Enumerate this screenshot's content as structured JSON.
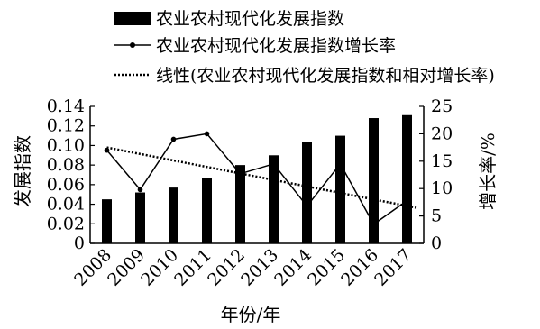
{
  "chart_data": {
    "type": "bar",
    "categories": [
      "2008",
      "2009",
      "2010",
      "2011",
      "2012",
      "2013",
      "2014",
      "2015",
      "2016",
      "2017"
    ],
    "series": [
      {
        "name": "农业农村现代化发展指数",
        "kind": "bar",
        "axis": "left",
        "values": [
          0.045,
          0.052,
          0.057,
          0.067,
          0.08,
          0.09,
          0.104,
          0.11,
          0.128,
          0.131
        ]
      },
      {
        "name": "农业农村现代化发展指数增长率",
        "kind": "line",
        "axis": "right",
        "values": [
          17.0,
          9.8,
          19.0,
          20.0,
          12.7,
          14.5,
          6.8,
          14.5,
          3.5,
          7.8
        ]
      },
      {
        "name": "线性(农业农村现代化发展指数和相对增长率)",
        "kind": "trendline",
        "axis": "right",
        "start": 17.5,
        "end": 6.5
      }
    ],
    "xlabel": "年份/年",
    "ylabel": "发展指数",
    "y2label": "增长率/%",
    "ylim": [
      0,
      0.14
    ],
    "y2lim": [
      0,
      25
    ],
    "yticks": [
      "0",
      "0.02",
      "0.04",
      "0.06",
      "0.08",
      "0.10",
      "0.12",
      "0.14"
    ],
    "y2ticks": [
      "0",
      "5",
      "10",
      "15",
      "20",
      "25"
    ],
    "grid": false,
    "legend_position": "top"
  }
}
